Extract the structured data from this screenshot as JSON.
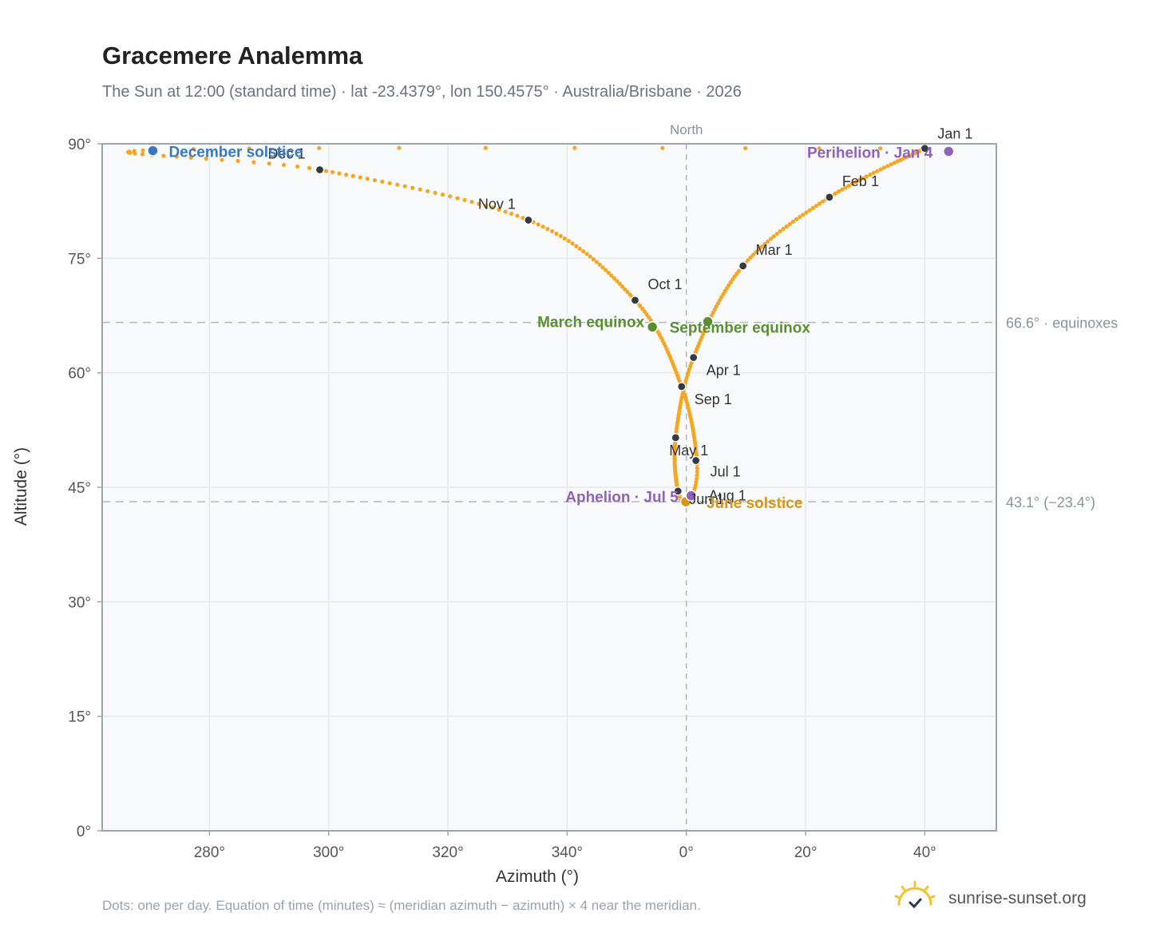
{
  "title": "Gracemere Analemma",
  "subtitle": "The Sun at 12:00 (standard time) · lat -23.4379°, lon 150.4575° · Australia/Brisbane · 2026",
  "footnote": "Dots: one per day. Equation of time (minutes) ≈ (meridian azimuth − azimuth) × 4 near the meridian.",
  "brand": {
    "text": "sunrise-sunset.org",
    "icon": "sun-logo-icon"
  },
  "colors": {
    "path": "#f5a623",
    "month_dot": "#333a44",
    "equinox": "#5b8f31",
    "june_solstice": "#d4961b",
    "december_solstice": "#3a78c0",
    "apsis": "#8e63b8",
    "grid": "#e6e9ee",
    "plot_bg": "#f8fafc",
    "axis": "#9aa5b1",
    "ref_line": "#b0bac4"
  },
  "chart_data": {
    "type": "scatter",
    "xlabel": "Azimuth (°)",
    "ylabel": "Altitude (°)",
    "xlim": [
      262,
      52
    ],
    "ylim": [
      0,
      90
    ],
    "x_ticks": [
      "280°",
      "300°",
      "320°",
      "340°",
      "0°",
      "20°",
      "40°"
    ],
    "y_ticks": [
      "0°",
      "15°",
      "30°",
      "45°",
      "60°",
      "75°",
      "90°"
    ],
    "north_label": "North",
    "grid": true,
    "reference_lines": [
      {
        "altitude": 66.6,
        "label": "66.6° · equinoxes"
      },
      {
        "altitude": 43.1,
        "label": "43.1° (−23.4°)"
      }
    ],
    "month_markers": [
      {
        "label": "Jan 1",
        "az": 40.0,
        "alt": 89.4
      },
      {
        "label": "Feb 1",
        "az": 24.0,
        "alt": 83.0
      },
      {
        "label": "Mar 1",
        "az": 9.5,
        "alt": 74.0
      },
      {
        "label": "Apr 1",
        "az": 1.2,
        "alt": 62.0
      },
      {
        "label": "May 1",
        "az": 358.2,
        "alt": 51.5
      },
      {
        "label": "Jun 1",
        "az": 358.6,
        "alt": 44.5
      },
      {
        "label": "Jul 1",
        "az": 1.6,
        "alt": 48.5
      },
      {
        "label": "Aug 1",
        "az": 1.6,
        "alt": 48.5
      },
      {
        "label": "Sep 1",
        "az": 359.2,
        "alt": 58.2
      },
      {
        "label": "Oct 1",
        "az": 351.4,
        "alt": 69.5
      },
      {
        "label": "Nov 1",
        "az": 333.5,
        "alt": 80.0
      },
      {
        "label": "Dec 1",
        "az": 298.5,
        "alt": 86.6
      }
    ],
    "events": [
      {
        "label": "March equinox",
        "az": 354.3,
        "alt": 66.0,
        "kind": "equinox"
      },
      {
        "label": "September equinox",
        "az": 3.6,
        "alt": 66.7,
        "kind": "equinox"
      },
      {
        "label": "June solstice",
        "az": 359.9,
        "alt": 43.1,
        "kind": "june_solstice"
      },
      {
        "label": "December solstice",
        "az": 270.5,
        "alt": 89.1,
        "kind": "december_solstice"
      },
      {
        "label": "Perihelion · Jan 4",
        "az": 44.0,
        "alt": 89.0,
        "kind": "apsis"
      },
      {
        "label": "Aphelion · Jul 5",
        "az": 0.8,
        "alt": 43.9,
        "kind": "apsis"
      }
    ]
  }
}
